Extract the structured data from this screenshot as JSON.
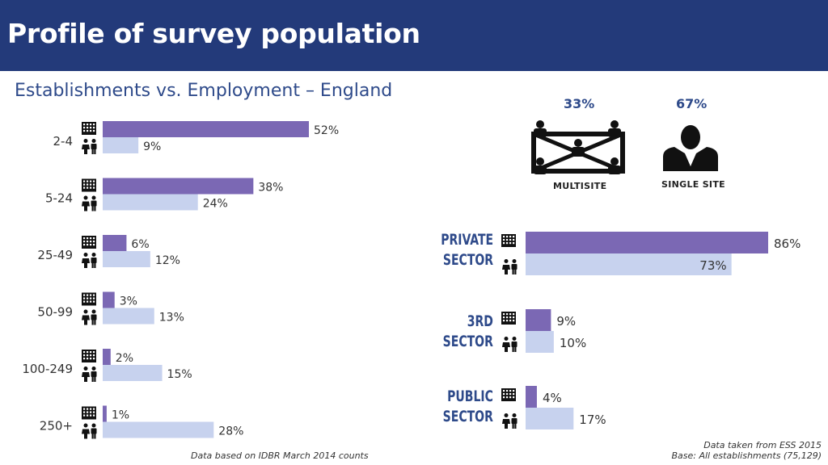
{
  "header": {
    "title": "Profile of survey population"
  },
  "subtitle": "Establishments vs. Employment – England",
  "colors": {
    "header_bg": "#233a7a",
    "establishments": "#7b68b4",
    "employment": "#c7d2ee",
    "heading": "#2e4a8a"
  },
  "icons": {
    "establishments": "building-icon",
    "employment": "people-icon",
    "multisite": "multisite-network-icon",
    "single_site": "single-person-icon"
  },
  "site_split": {
    "multisite": {
      "percent": "33%",
      "label": "MULTISITE"
    },
    "single_site": {
      "percent": "67%",
      "label": "SINGLE SITE"
    }
  },
  "sector_labels": {
    "private": [
      "PRIVATE",
      "SECTOR"
    ],
    "third": [
      "3RD",
      "SECTOR"
    ],
    "public": [
      "PUBLIC",
      "SECTOR"
    ]
  },
  "footnotes": {
    "left": "Data based on IDBR March 2014 counts",
    "right_line1": "Data taken from ESS 2015",
    "right_line2": "Base: All establishments (75,129)"
  },
  "chart_data": [
    {
      "type": "bar",
      "orientation": "horizontal",
      "categories": [
        "2-4",
        "5-24",
        "25-49",
        "50-99",
        "100-249",
        "250+"
      ],
      "series": [
        {
          "values": [
            52,
            38,
            6,
            3,
            2,
            1
          ],
          "labels": [
            "52%",
            "38%",
            "6%",
            "3%",
            "2%",
            "1%"
          ]
        },
        {
          "values": [
            9,
            24,
            12,
            13,
            15,
            28
          ],
          "labels": [
            "9%",
            "24%",
            "12%",
            "13%",
            "15%",
            "28%"
          ]
        }
      ],
      "unit": "%"
    },
    {
      "type": "bar",
      "orientation": "horizontal",
      "categories": [
        "PRIVATE SECTOR",
        "3RD SECTOR",
        "PUBLIC SECTOR"
      ],
      "series": [
        {
          "values": [
            86,
            9,
            4
          ],
          "labels": [
            "86%",
            "9%",
            "4%"
          ]
        },
        {
          "values": [
            73,
            10,
            17
          ],
          "labels": [
            "73%",
            "10%",
            "17%"
          ]
        }
      ],
      "unit": "%"
    }
  ]
}
